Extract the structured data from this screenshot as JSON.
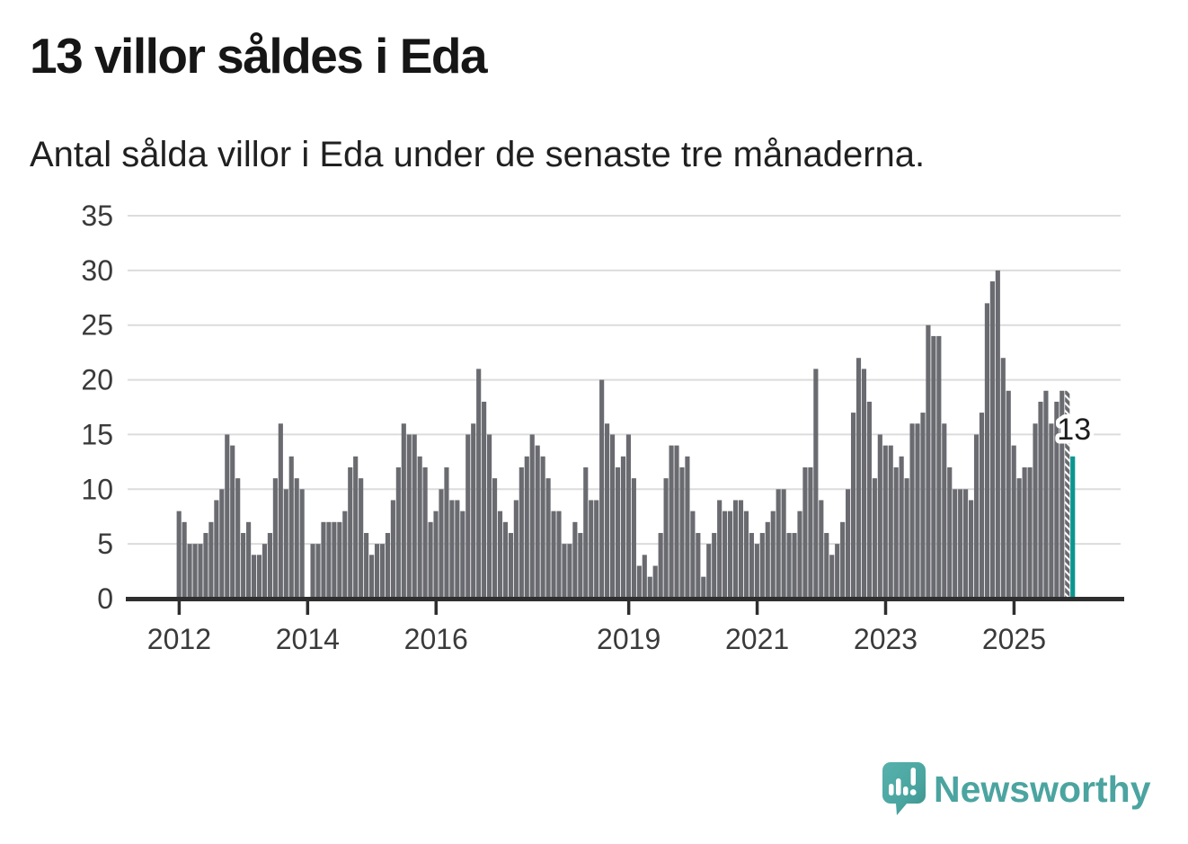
{
  "header": {
    "title": "13 villor såldes i Eda",
    "subtitle": "Antal sålda villor i Eda under de senaste tre månaderna."
  },
  "footer": {
    "brand_name": "Newsworthy",
    "brand_color": "#4BA4A0",
    "logo_icon": "speech-bubble-with-bar-chart-and-exclamation"
  },
  "chart_data": {
    "type": "bar",
    "title": "13 villor såldes i Eda",
    "subtitle": "Antal sålda villor i Eda under de senaste tre månaderna.",
    "xlabel": "",
    "ylabel": "",
    "grid": true,
    "ylim": [
      0,
      35
    ],
    "yticks": [
      0,
      5,
      10,
      15,
      20,
      25,
      30,
      35
    ],
    "start_year": 2012,
    "start_month": 1,
    "frequency": "monthly",
    "values": [
      8,
      7,
      5,
      5,
      5,
      6,
      7,
      9,
      10,
      15,
      14,
      11,
      6,
      7,
      4,
      4,
      5,
      6,
      11,
      16,
      10,
      13,
      11,
      10,
      0,
      5,
      5,
      7,
      7,
      7,
      7,
      8,
      12,
      13,
      11,
      6,
      4,
      5,
      5,
      6,
      9,
      12,
      16,
      15,
      15,
      13,
      12,
      7,
      8,
      10,
      12,
      9,
      9,
      8,
      15,
      16,
      21,
      18,
      15,
      11,
      8,
      7,
      6,
      9,
      12,
      13,
      15,
      14,
      13,
      11,
      8,
      8,
      5,
      5,
      7,
      6,
      12,
      9,
      9,
      20,
      16,
      15,
      12,
      13,
      15,
      11,
      3,
      4,
      2,
      3,
      6,
      11,
      14,
      14,
      12,
      13,
      8,
      6,
      2,
      5,
      6,
      9,
      8,
      8,
      9,
      9,
      8,
      6,
      5,
      6,
      7,
      8,
      10,
      10,
      6,
      6,
      8,
      12,
      12,
      21,
      9,
      6,
      4,
      5,
      7,
      10,
      17,
      22,
      21,
      18,
      11,
      15,
      14,
      14,
      12,
      13,
      11,
      16,
      16,
      17,
      25,
      24,
      24,
      16,
      12,
      10,
      10,
      10,
      9,
      15,
      17,
      27,
      29,
      30,
      22,
      19,
      14,
      11,
      12,
      12,
      16,
      18,
      19,
      16,
      18,
      19,
      19,
      13
    ],
    "xticks": [
      {
        "label": "2012",
        "index": 0
      },
      {
        "label": "2014",
        "index": 24
      },
      {
        "label": "2016",
        "index": 48
      },
      {
        "label": "2019",
        "index": 84
      },
      {
        "label": "2021",
        "index": 108
      },
      {
        "label": "2023",
        "index": 132
      },
      {
        "label": "2025",
        "index": 156
      }
    ],
    "bar_color": "#6a6b70",
    "highlight_color": "#0b968f",
    "highlight_index": 167,
    "highlight_label": "13",
    "hatched_indices": [
      166
    ],
    "gridline_color": "#dcdcdc",
    "axis_color": "#2e2e2e",
    "tick_label_color": "#3a3a3a",
    "legend_position": "none"
  }
}
